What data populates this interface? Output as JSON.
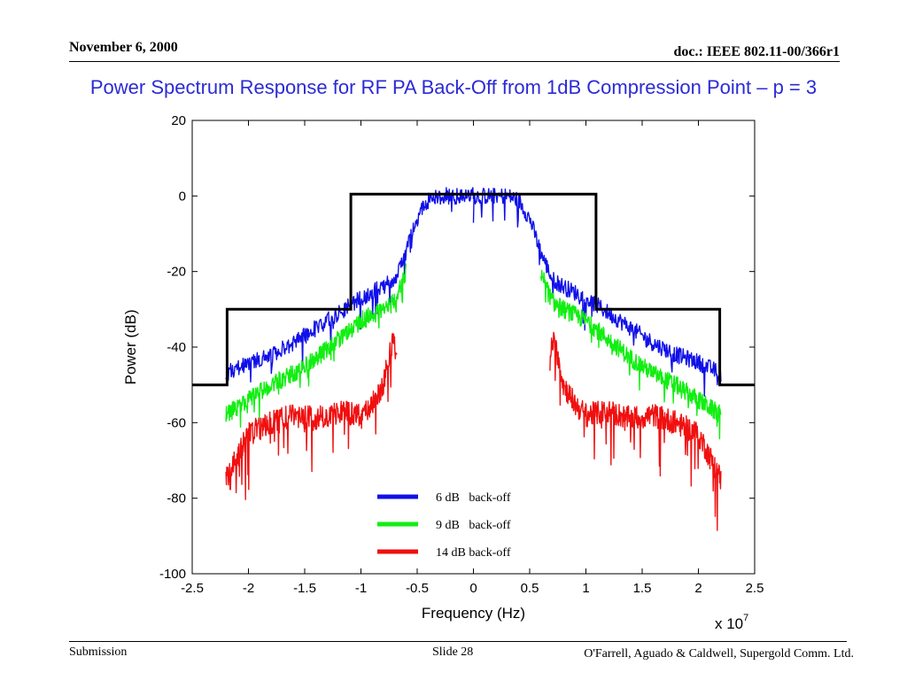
{
  "slide": {
    "date": "November 6, 2000",
    "doc_id": "doc.: IEEE 802.11-00/366r1",
    "title": "Power Spectrum Response for RF PA Back-Off from 1dB Compression Point – p = 3",
    "footer_left": "Submission",
    "footer_center": "Slide 28",
    "footer_right": "O'Farrell, Aguado & Caldwell, Supergold Comm. Ltd."
  },
  "chart_data": {
    "type": "line",
    "xlabel": "Frequency (Hz)",
    "ylabel": "Power (dB)",
    "x_multiplier_base": "x 10",
    "x_multiplier_exp": "7",
    "xlim": [
      -2.5,
      2.5
    ],
    "ylim": [
      -100,
      20
    ],
    "x_ticks": [
      "-2.5",
      "-2",
      "-1.5",
      "-1",
      "-0.5",
      "0",
      "0.5",
      "1",
      "1.5",
      "2",
      "2.5"
    ],
    "y_ticks": [
      "20",
      "0",
      "-20",
      "-40",
      "-60",
      "-80",
      "-100"
    ],
    "grid": false,
    "legend_position": "lower-center",
    "mask": {
      "color": "#000000",
      "x": [
        -2.5,
        -2.19,
        -2.19,
        -1.09,
        -1.09,
        1.09,
        1.09,
        2.19,
        2.19,
        2.5
      ],
      "y": [
        -50,
        -50,
        -30,
        -30,
        0.5,
        0.5,
        -30,
        -30,
        -50,
        -50
      ]
    },
    "series": [
      {
        "name": "6 dB   back-off",
        "color": "#1010e8",
        "x": [
          0,
          0.3,
          0.4,
          0.5,
          0.6,
          0.7,
          0.8,
          1.0,
          1.2,
          1.4,
          1.6,
          1.8,
          2.0,
          2.2
        ],
        "y": [
          0,
          0,
          -1,
          -6,
          -15,
          -22,
          -24,
          -27,
          -31,
          -35,
          -39,
          -42,
          -44,
          -47
        ]
      },
      {
        "name": "9 dB   back-off",
        "color": "#12ee12",
        "x": [
          0.6,
          0.7,
          0.8,
          1.0,
          1.2,
          1.4,
          1.6,
          1.8,
          2.0,
          2.2
        ],
        "y": [
          -20,
          -28,
          -30,
          -33,
          -38,
          -43,
          -47,
          -50,
          -54,
          -58
        ]
      },
      {
        "name": "14 dB back-off",
        "color": "#f01010",
        "x": [
          0.68,
          0.7,
          0.75,
          0.8,
          0.9,
          1.0,
          1.2,
          1.4,
          1.6,
          1.8,
          2.0,
          2.2
        ],
        "y": [
          -45,
          -38,
          -42,
          -50,
          -55,
          -58,
          -57,
          -59,
          -58,
          -60,
          -63,
          -75
        ]
      }
    ]
  }
}
